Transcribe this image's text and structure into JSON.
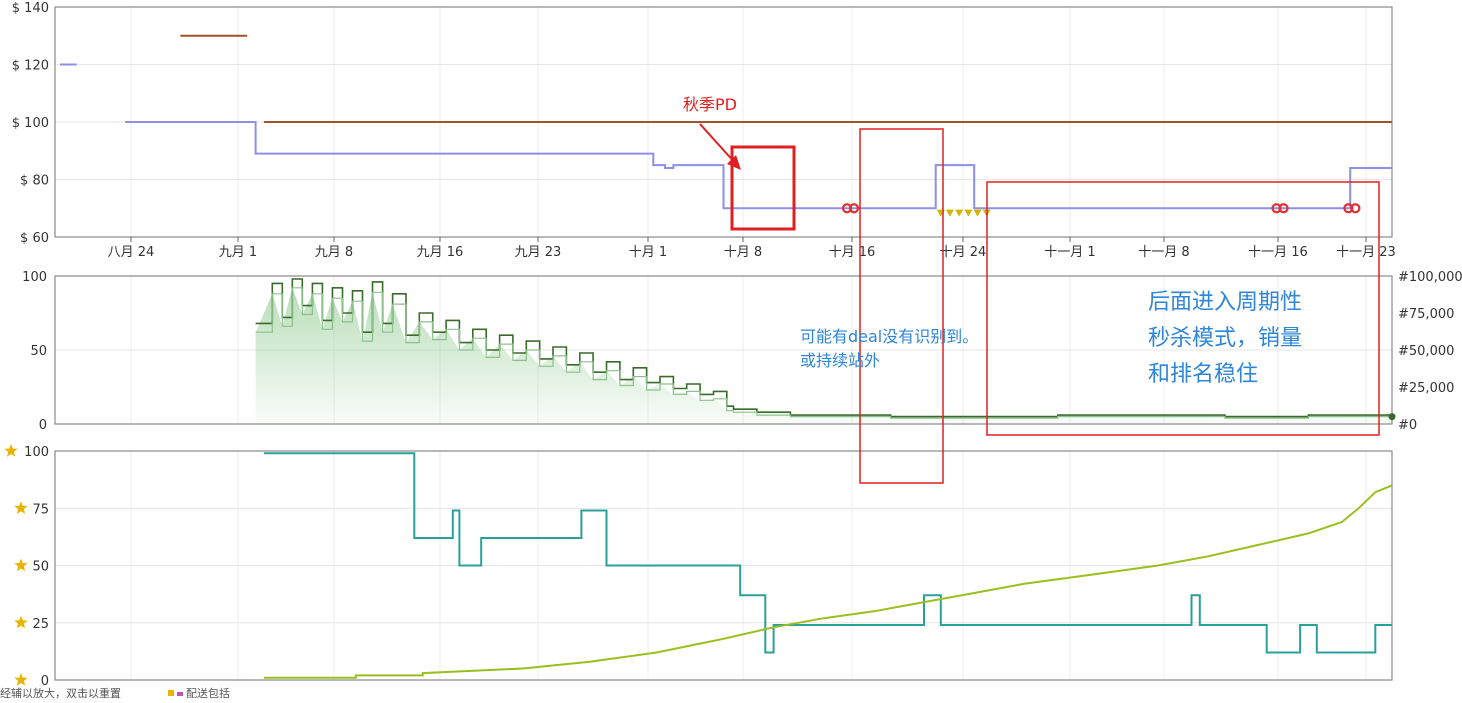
{
  "chart_data": [
    {
      "type": "line",
      "panel": "price",
      "ylim": [
        60,
        140
      ],
      "y_ticks": [
        {
          "v": 60,
          "label": "$ 60"
        },
        {
          "v": 80,
          "label": "$ 80"
        },
        {
          "v": 100,
          "label": "$ 100"
        },
        {
          "v": 120,
          "label": "$ 120"
        },
        {
          "v": 140,
          "label": "$ 140"
        }
      ],
      "x_ticks": [
        "八月 24",
        "九月 1",
        "九月 8",
        "九月 16",
        "九月 23",
        "十月 1",
        "十月 8",
        "十月 16",
        "十月 24",
        "十一月 1",
        "十一月 8",
        "十一月 16",
        "十一月 23"
      ],
      "grid": true,
      "series": [
        {
          "key": "list_price",
          "color": "#a0522d",
          "segments": [
            [
              [
                7.5,
                130
              ],
              [
                11.5,
                130
              ]
            ],
            [
              [
                12.5,
                100
              ],
              [
                80,
                100
              ]
            ]
          ]
        },
        {
          "key": "new_price",
          "color": "#8f8fe8",
          "segments": [
            [
              [
                0.3,
                120
              ],
              [
                1.3,
                120
              ]
            ],
            [
              [
                4.2,
                100
              ],
              [
                12.0,
                100
              ],
              [
                12.0,
                89
              ],
              [
                35.8,
                89
              ],
              [
                35.8,
                85
              ],
              [
                36.5,
                85
              ],
              [
                36.5,
                84
              ],
              [
                37.0,
                84
              ],
              [
                37.0,
                85
              ],
              [
                40.0,
                85
              ],
              [
                40.0,
                70
              ],
              [
                52.7,
                70
              ],
              [
                52.7,
                85
              ],
              [
                55.0,
                85
              ],
              [
                55.0,
                70
              ],
              [
                60.2,
                70
              ],
              [
                60.2,
                70
              ],
              [
                77.5,
                70
              ],
              [
                77.5,
                84
              ],
              [
                80,
                84
              ]
            ]
          ]
        }
      ],
      "deal_markers": [
        {
          "color": "#e03030",
          "x": [
            47.6,
            73.3,
            77.6,
            95.2,
            99.7,
            106.2,
            138.2
          ]
        }
      ],
      "coupon_markers": [
        {
          "color": "#d4b400",
          "x_ranges": [
            [
              53.0,
              56.0
            ],
            [
              136.8,
              140
            ]
          ]
        }
      ],
      "annotations": [
        {
          "text": "秋季PD",
          "color": "#e02020"
        }
      ]
    },
    {
      "type": "area",
      "panel": "sales_rank",
      "ylim": [
        0,
        100
      ],
      "y_ticks": [
        {
          "v": 0,
          "label": "0"
        },
        {
          "v": 50,
          "label": "50"
        },
        {
          "v": 100,
          "label": "100"
        }
      ],
      "y2_ticks": [
        "#0",
        "#25,000",
        "#50,000",
        "#75,000",
        "#100,000"
      ],
      "series": [
        {
          "key": "rank_main",
          "color": "#3a6b2a",
          "points": [
            [
              12.0,
              68
            ],
            [
              13.0,
              95
            ],
            [
              13.6,
              72
            ],
            [
              14.2,
              98
            ],
            [
              14.8,
              80
            ],
            [
              15.4,
              95
            ],
            [
              16.0,
              70
            ],
            [
              16.6,
              92
            ],
            [
              17.2,
              75
            ],
            [
              17.8,
              90
            ],
            [
              18.4,
              62
            ],
            [
              19.0,
              96
            ],
            [
              19.6,
              68
            ],
            [
              20.2,
              88
            ],
            [
              21.0,
              60
            ],
            [
              21.8,
              75
            ],
            [
              22.6,
              62
            ],
            [
              23.4,
              70
            ],
            [
              24.2,
              55
            ],
            [
              25.0,
              64
            ],
            [
              25.8,
              50
            ],
            [
              26.6,
              60
            ],
            [
              27.4,
              48
            ],
            [
              28.2,
              56
            ],
            [
              29.0,
              44
            ],
            [
              29.8,
              52
            ],
            [
              30.6,
              40
            ],
            [
              31.4,
              48
            ],
            [
              32.2,
              35
            ],
            [
              33.0,
              42
            ],
            [
              33.8,
              30
            ],
            [
              34.6,
              38
            ],
            [
              35.4,
              28
            ],
            [
              36.2,
              32
            ],
            [
              37.0,
              24
            ],
            [
              37.8,
              27
            ],
            [
              38.6,
              20
            ],
            [
              39.4,
              22
            ],
            [
              40.2,
              12
            ],
            [
              40.6,
              10
            ],
            [
              42.0,
              8
            ],
            [
              44.0,
              6
            ],
            [
              46,
              6
            ],
            [
              50,
              5
            ],
            [
              55,
              5
            ],
            [
              60,
              6
            ],
            [
              65,
              6
            ],
            [
              70,
              5
            ],
            [
              75,
              6
            ],
            [
              80,
              5
            ]
          ]
        },
        {
          "key": "rank_light",
          "color": "#8cc08c",
          "points": [
            [
              12.0,
              62
            ],
            [
              13.0,
              88
            ],
            [
              13.6,
              66
            ],
            [
              14.2,
              92
            ],
            [
              14.8,
              74
            ],
            [
              15.4,
              88
            ],
            [
              16.0,
              64
            ],
            [
              16.6,
              85
            ],
            [
              17.2,
              69
            ],
            [
              17.8,
              83
            ],
            [
              18.4,
              56
            ],
            [
              19.0,
              89
            ],
            [
              19.6,
              62
            ],
            [
              20.2,
              81
            ],
            [
              21.0,
              55
            ],
            [
              21.8,
              69
            ],
            [
              22.6,
              57
            ],
            [
              23.4,
              64
            ],
            [
              24.2,
              50
            ],
            [
              25.0,
              58
            ],
            [
              25.8,
              45
            ],
            [
              26.6,
              54
            ],
            [
              27.4,
              43
            ],
            [
              28.2,
              50
            ],
            [
              29.0,
              39
            ],
            [
              29.8,
              46
            ],
            [
              30.6,
              35
            ],
            [
              31.4,
              42
            ],
            [
              32.2,
              30
            ],
            [
              33.0,
              36
            ],
            [
              33.8,
              26
            ],
            [
              34.6,
              32
            ],
            [
              35.4,
              23
            ],
            [
              36.2,
              27
            ],
            [
              37.0,
              20
            ],
            [
              37.8,
              22
            ],
            [
              38.6,
              16
            ],
            [
              39.4,
              17
            ],
            [
              40.2,
              9
            ],
            [
              40.6,
              8
            ],
            [
              42.0,
              6
            ],
            [
              44.0,
              5
            ],
            [
              46,
              5
            ],
            [
              50,
              4
            ],
            [
              55,
              4
            ],
            [
              60,
              5
            ],
            [
              65,
              5
            ],
            [
              70,
              4
            ],
            [
              75,
              5
            ],
            [
              80,
              4
            ]
          ]
        }
      ],
      "annotations": [
        {
          "lines": [
            "可能有deal没有识别到。",
            "或持续站外"
          ],
          "color": "#2e86d8"
        },
        {
          "lines": [
            "后面进入周期性",
            "秒杀模式，销量",
            "和排名稳住"
          ],
          "color": "#2e86d8"
        }
      ]
    },
    {
      "type": "line",
      "panel": "rating",
      "ylim": [
        0,
        100
      ],
      "y_ticks": [
        {
          "v": 0,
          "label": "0"
        },
        {
          "v": 25,
          "label": "25"
        },
        {
          "v": 50,
          "label": "50"
        },
        {
          "v": 75,
          "label": "75"
        },
        {
          "v": 100,
          "label": "100"
        }
      ],
      "star_color": "#e8b400",
      "series": [
        {
          "key": "rating",
          "color": "#2aa198",
          "points": [
            [
              12.5,
              99
            ],
            [
              21.5,
              99
            ],
            [
              21.5,
              62
            ],
            [
              23.8,
              62
            ],
            [
              23.8,
              74
            ],
            [
              24.2,
              74
            ],
            [
              24.2,
              50
            ],
            [
              25.5,
              50
            ],
            [
              25.5,
              62
            ],
            [
              31.5,
              62
            ],
            [
              31.5,
              74
            ],
            [
              33.0,
              74
            ],
            [
              33.0,
              50
            ],
            [
              41.0,
              50
            ],
            [
              41.0,
              37
            ],
            [
              42.5,
              37
            ],
            [
              42.5,
              12
            ],
            [
              43.0,
              12
            ],
            [
              43.0,
              24
            ],
            [
              52.0,
              24
            ],
            [
              52.0,
              37
            ],
            [
              53.0,
              37
            ],
            [
              53.0,
              24
            ],
            [
              68.0,
              24
            ],
            [
              68.0,
              37
            ],
            [
              68.5,
              37
            ],
            [
              68.5,
              24
            ],
            [
              72.5,
              24
            ],
            [
              72.5,
              12
            ],
            [
              74.5,
              12
            ],
            [
              74.5,
              24
            ],
            [
              75.5,
              24
            ],
            [
              75.5,
              12
            ],
            [
              79.0,
              12
            ],
            [
              79.0,
              24
            ],
            [
              80,
              24
            ]
          ]
        },
        {
          "key": "review_count",
          "color": "#9abf1e",
          "points": [
            [
              12.5,
              1
            ],
            [
              18.0,
              1
            ],
            [
              18.0,
              2
            ],
            [
              22.0,
              2
            ],
            [
              22.0,
              3
            ],
            [
              28.0,
              5
            ],
            [
              32.0,
              8
            ],
            [
              36.0,
              12
            ],
            [
              38.0,
              15
            ],
            [
              40.0,
              18
            ],
            [
              43.0,
              23
            ],
            [
              46.0,
              27
            ],
            [
              49.0,
              30
            ],
            [
              52.0,
              34
            ],
            [
              55.0,
              38
            ],
            [
              58.0,
              42
            ],
            [
              61.0,
              45
            ],
            [
              64.0,
              48
            ],
            [
              66.0,
              50
            ],
            [
              69.0,
              54
            ],
            [
              72.0,
              59
            ],
            [
              75.0,
              64
            ],
            [
              77.0,
              69
            ],
            [
              78.0,
              75
            ],
            [
              79.0,
              82
            ],
            [
              80,
              85
            ]
          ]
        }
      ],
      "legend_items": [
        "经辅以放大，双击以重置",
        "配送包括"
      ]
    }
  ]
}
